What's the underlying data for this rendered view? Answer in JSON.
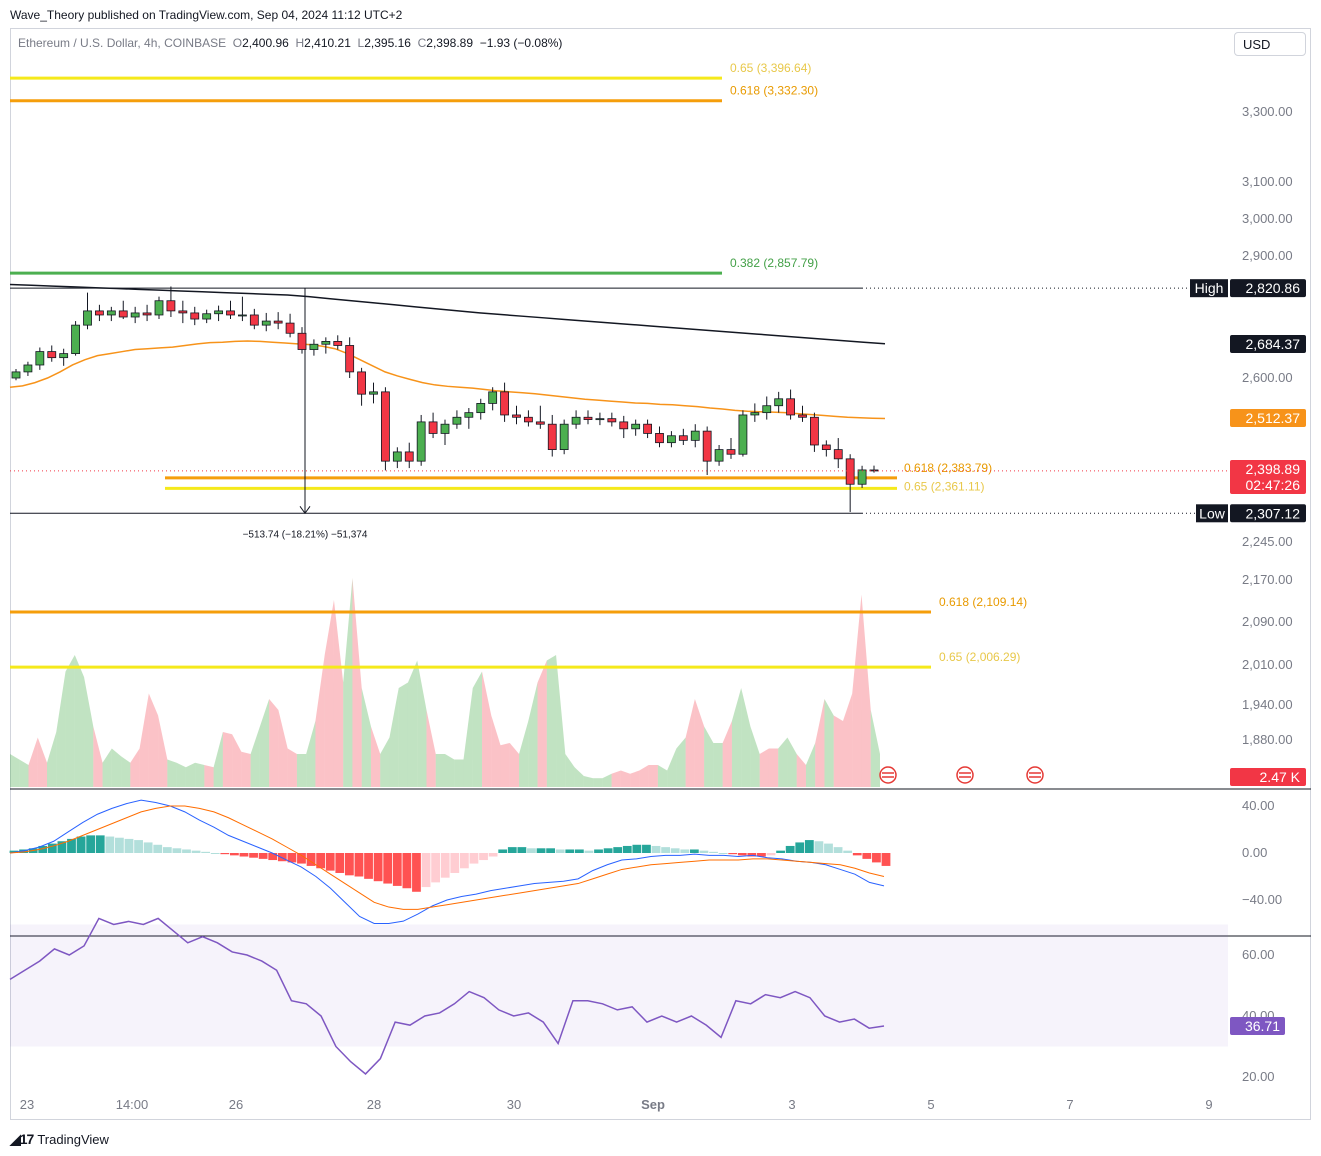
{
  "header": {
    "published": "Wave_Theory published on TradingView.com, Sep 04, 2024 11:12 UTC+2"
  },
  "legend": {
    "symbol": "Ethereum / U.S. Dollar, 4h, COINBASE",
    "o_label": "O",
    "o": "2,400.96",
    "h_label": "H",
    "h": "2,410.21",
    "l_label": "L",
    "l": "2,395.16",
    "c_label": "C",
    "c": "2,398.89",
    "change": "−1.93 (−0.08%)"
  },
  "currency": "USD",
  "brand": "TradingView",
  "colors": {
    "up": "#26a69a",
    "candle_up": "#4caf50",
    "down": "#f23645",
    "fib_0382": "#4caf50",
    "fib_0618": "#f59e0b",
    "fib_065": "#f5e91b",
    "ema_orange": "#f7931a",
    "sma_black": "#131722",
    "macd_line": "#2962ff",
    "signal_line": "#ff6d00",
    "rsi": "#7e57c2"
  },
  "chart_data": [
    {
      "type": "line",
      "panel": "price",
      "title": "Ethereum / U.S. Dollar, 4h, COINBASE",
      "x_tick_labels": [
        "23",
        "14:00",
        "26",
        "28",
        "30",
        "Sep",
        "3",
        "5",
        "7",
        "9"
      ],
      "y_tick_labels": [
        "3,300.00",
        "3,100.00",
        "3,000.00",
        "2,900.00",
        "2,600.00",
        "2,245.00",
        "2,170.00",
        "2,090.00",
        "2,010.00",
        "1,940.00",
        "1,880.00"
      ],
      "candles_ohlc": [
        [
          2600,
          2622,
          2595,
          2615
        ],
        [
          2615,
          2640,
          2605,
          2632
        ],
        [
          2632,
          2675,
          2620,
          2665
        ],
        [
          2665,
          2680,
          2640,
          2650
        ],
        [
          2650,
          2672,
          2630,
          2660
        ],
        [
          2660,
          2740,
          2655,
          2730
        ],
        [
          2730,
          2810,
          2720,
          2765
        ],
        [
          2765,
          2780,
          2740,
          2755
        ],
        [
          2755,
          2775,
          2740,
          2765
        ],
        [
          2765,
          2790,
          2745,
          2750
        ],
        [
          2750,
          2775,
          2735,
          2760
        ],
        [
          2760,
          2780,
          2740,
          2755
        ],
        [
          2755,
          2800,
          2745,
          2790
        ],
        [
          2790,
          2825,
          2750,
          2765
        ],
        [
          2765,
          2790,
          2735,
          2760
        ],
        [
          2760,
          2775,
          2730,
          2745
        ],
        [
          2745,
          2768,
          2735,
          2758
        ],
        [
          2758,
          2778,
          2740,
          2765
        ],
        [
          2765,
          2790,
          2745,
          2755
        ],
        [
          2755,
          2800,
          2740,
          2755
        ],
        [
          2755,
          2770,
          2720,
          2730
        ],
        [
          2730,
          2760,
          2715,
          2740
        ],
        [
          2740,
          2762,
          2720,
          2735
        ],
        [
          2735,
          2758,
          2700,
          2710
        ],
        [
          2710,
          2725,
          2660,
          2670
        ],
        [
          2670,
          2695,
          2655,
          2683
        ],
        [
          2683,
          2700,
          2660,
          2690
        ],
        [
          2690,
          2705,
          2670,
          2680
        ],
        [
          2680,
          2700,
          2600,
          2615
        ],
        [
          2615,
          2625,
          2540,
          2565
        ],
        [
          2565,
          2590,
          2545,
          2570
        ],
        [
          2570,
          2580,
          2400,
          2420
        ],
        [
          2420,
          2450,
          2405,
          2440
        ],
        [
          2440,
          2460,
          2405,
          2420
        ],
        [
          2420,
          2520,
          2410,
          2505
        ],
        [
          2505,
          2525,
          2470,
          2480
        ],
        [
          2480,
          2510,
          2455,
          2500
        ],
        [
          2500,
          2530,
          2490,
          2515
        ],
        [
          2515,
          2535,
          2490,
          2525
        ],
        [
          2525,
          2555,
          2510,
          2545
        ],
        [
          2545,
          2580,
          2530,
          2570
        ],
        [
          2570,
          2590,
          2505,
          2520
        ],
        [
          2520,
          2540,
          2500,
          2515
        ],
        [
          2515,
          2530,
          2495,
          2505
        ],
        [
          2505,
          2540,
          2490,
          2500
        ],
        [
          2500,
          2520,
          2430,
          2445
        ],
        [
          2445,
          2510,
          2435,
          2500
        ],
        [
          2500,
          2530,
          2490,
          2515
        ],
        [
          2515,
          2530,
          2500,
          2510
        ],
        [
          2510,
          2525,
          2498,
          2512
        ],
        [
          2512,
          2525,
          2495,
          2505
        ],
        [
          2505,
          2518,
          2470,
          2490
        ],
        [
          2490,
          2510,
          2475,
          2500
        ],
        [
          2500,
          2510,
          2470,
          2480
        ],
        [
          2480,
          2495,
          2450,
          2460
        ],
        [
          2460,
          2485,
          2450,
          2475
        ],
        [
          2475,
          2490,
          2455,
          2465
        ],
        [
          2465,
          2500,
          2450,
          2485
        ],
        [
          2485,
          2495,
          2390,
          2420
        ],
        [
          2420,
          2455,
          2410,
          2445
        ],
        [
          2445,
          2470,
          2425,
          2435
        ],
        [
          2435,
          2530,
          2430,
          2520
        ],
        [
          2520,
          2545,
          2505,
          2525
        ],
        [
          2525,
          2560,
          2510,
          2540
        ],
        [
          2540,
          2570,
          2525,
          2555
        ],
        [
          2555,
          2575,
          2510,
          2520
        ],
        [
          2520,
          2540,
          2505,
          2515
        ],
        [
          2515,
          2525,
          2440,
          2455
        ],
        [
          2455,
          2465,
          2430,
          2445
        ],
        [
          2445,
          2470,
          2405,
          2425
        ],
        [
          2425,
          2435,
          2310,
          2370
        ],
        [
          2370,
          2410,
          2362,
          2401
        ],
        [
          2400.96,
          2410.21,
          2395.16,
          2398.89
        ]
      ],
      "ema_50": [
        2580,
        2583,
        2590,
        2600,
        2615,
        2632,
        2645,
        2655,
        2660,
        2665,
        2670,
        2672,
        2674,
        2676,
        2680,
        2684,
        2687,
        2688,
        2690,
        2691,
        2690,
        2688,
        2686,
        2684,
        2682,
        2678,
        2672,
        2660,
        2645,
        2630,
        2615,
        2605,
        2597,
        2590,
        2585,
        2582,
        2580,
        2578,
        2575,
        2572,
        2570,
        2568,
        2566,
        2563,
        2560,
        2557,
        2554,
        2552,
        2550,
        2548,
        2546,
        2545,
        2543,
        2542,
        2540,
        2538,
        2535,
        2533,
        2530,
        2528,
        2527,
        2526,
        2525,
        2523,
        2521,
        2519,
        2517,
        2515,
        2514,
        2513,
        2512.37
      ],
      "sma_200": [
        2830,
        2828,
        2826,
        2824,
        2822,
        2820,
        2818,
        2816,
        2814,
        2812,
        2810,
        2808,
        2806,
        2804,
        2800,
        2795,
        2790,
        2785,
        2780,
        2775,
        2770,
        2765,
        2760,
        2756,
        2752,
        2748,
        2744,
        2740,
        2736,
        2732,
        2728,
        2724,
        2720,
        2716,
        2712,
        2708,
        2704,
        2700,
        2696,
        2692,
        2688,
        2684.37
      ],
      "fib_levels": [
        {
          "label": "0.65 (3,396.64)",
          "price": 3396.64
        },
        {
          "label": "0.618 (3,332.30)",
          "price": 3332.3
        },
        {
          "label": "0.382 (2,857.79)",
          "price": 2857.79
        },
        {
          "label": "0.618 (2,383.79)",
          "price": 2383.79
        },
        {
          "label": "0.65 (2,361.11)",
          "price": 2361.11
        },
        {
          "label": "0.618 (2,109.14)",
          "price": 2109.14
        },
        {
          "label": "0.65 (2,006.29)",
          "price": 2006.29
        }
      ],
      "high": {
        "label": "High",
        "price": "2,820.86",
        "value": 2820.86
      },
      "low": {
        "label": "Low",
        "price": "2,307.12",
        "value": 2307.12
      },
      "sma_price_label": "2,684.37",
      "ema_price_label": "2,512.37",
      "last_price_label": "2,398.89",
      "countdown": "02:47:26",
      "measure_label": "−513.74 (−18.21%) −51,374"
    },
    {
      "type": "area",
      "panel": "volume",
      "last_label": "2.47 K",
      "values": [
        0.3,
        0.25,
        0.2,
        0.45,
        0.22,
        0.5,
        1.05,
        1.2,
        1.0,
        0.55,
        0.22,
        0.35,
        0.28,
        0.22,
        0.35,
        0.85,
        0.65,
        0.25,
        0.22,
        0.18,
        0.22,
        0.2,
        0.18,
        0.5,
        0.48,
        0.32,
        0.3,
        0.55,
        0.8,
        0.7,
        0.35,
        0.3,
        0.3,
        0.6,
        1.2,
        1.7,
        0.95,
        1.9,
        0.9,
        0.55,
        0.3,
        0.45,
        0.9,
        0.95,
        1.15,
        0.7,
        0.3,
        0.3,
        0.25,
        0.25,
        0.9,
        1.05,
        0.65,
        0.38,
        0.4,
        0.3,
        0.6,
        0.95,
        1.15,
        1.2,
        0.3,
        0.18,
        0.1,
        0.08,
        0.08,
        0.12,
        0.15,
        0.12,
        0.15,
        0.2,
        0.2,
        0.15,
        0.35,
        0.45,
        0.8,
        0.55,
        0.4,
        0.4,
        0.6,
        0.9,
        0.55,
        0.3,
        0.35,
        0.35,
        0.45,
        0.3,
        0.2,
        0.4,
        0.8,
        0.65,
        0.6,
        0.85,
        1.75,
        0.7,
        0.3
      ],
      "up": [
        1,
        1,
        0,
        0,
        1,
        1,
        1,
        1,
        1,
        0,
        1,
        1,
        1,
        0,
        0,
        0,
        0,
        1,
        1,
        1,
        1,
        0,
        1,
        0,
        0,
        0,
        1,
        1,
        0,
        0,
        0,
        1,
        1,
        0,
        0,
        0,
        1,
        0,
        1,
        0,
        1,
        1,
        1,
        1,
        1,
        0,
        1,
        1,
        1,
        1,
        1,
        0,
        0,
        0,
        0,
        1,
        1,
        0,
        1,
        1,
        1,
        1,
        1,
        1,
        1,
        0,
        0,
        0,
        0,
        0,
        1,
        1,
        1,
        0,
        0,
        1,
        1,
        0,
        1,
        1,
        1,
        0,
        0,
        1,
        1,
        0,
        1,
        0,
        1,
        0,
        0,
        0,
        0,
        1,
        0
      ]
    },
    {
      "type": "bar",
      "panel": "macd",
      "y_tick_labels": [
        "40.00",
        "0.00",
        "−40.00"
      ],
      "histogram": [
        2,
        3,
        4,
        6,
        8,
        10,
        12,
        14,
        15,
        15,
        14,
        13,
        12,
        11,
        9,
        7,
        5,
        4,
        3,
        2,
        1,
        0,
        -1,
        -2,
        -3,
        -4,
        -5,
        -6,
        -7,
        -8,
        -9,
        -11,
        -13,
        -15,
        -17,
        -19,
        -20,
        -22,
        -24,
        -26,
        -28,
        -30,
        -33,
        -29,
        -25,
        -21,
        -17,
        -13,
        -9,
        -6,
        -3,
        3,
        5,
        5,
        4,
        4,
        4,
        3,
        3,
        3,
        2,
        3,
        4,
        5,
        6,
        7,
        7,
        6,
        5,
        4,
        3,
        3,
        2,
        1,
        0,
        -1,
        -2,
        -3,
        -3,
        -2,
        2,
        6,
        9,
        11,
        10,
        8,
        5,
        2,
        -2,
        -5,
        -8,
        -11
      ],
      "macd_line": [
        0,
        2,
        5,
        10,
        18,
        26,
        33,
        38,
        42,
        45,
        43,
        40,
        35,
        28,
        22,
        15,
        10,
        5,
        0,
        -6,
        -12,
        -20,
        -30,
        -42,
        -54,
        -60,
        -60,
        -58,
        -52,
        -45,
        -40,
        -37,
        -35,
        -32,
        -30,
        -28,
        -26,
        -25,
        -24,
        -22,
        -15,
        -10,
        -6,
        -5,
        -3,
        -2,
        -2,
        -1,
        -2,
        -2,
        -3,
        -2,
        -4,
        -5,
        -7,
        -8,
        -10,
        -14,
        -18,
        -25,
        -28
      ],
      "signal_line": [
        0,
        1,
        3,
        6,
        10,
        15,
        20,
        25,
        30,
        35,
        38,
        40,
        40,
        38,
        35,
        30,
        24,
        18,
        12,
        5,
        -2,
        -10,
        -18,
        -26,
        -34,
        -42,
        -46,
        -48,
        -48,
        -46,
        -44,
        -42,
        -40,
        -38,
        -36,
        -34,
        -32,
        -30,
        -28,
        -26,
        -22,
        -18,
        -14,
        -12,
        -10,
        -9,
        -8,
        -7,
        -6,
        -6,
        -6,
        -5,
        -5,
        -6,
        -7,
        -8,
        -9,
        -10,
        -13,
        -17,
        -20
      ]
    },
    {
      "type": "line",
      "panel": "rsi",
      "y_tick_labels": [
        "60.00",
        "40.00",
        "20.00"
      ],
      "last_label": "36.71",
      "values": [
        52,
        55,
        58,
        62,
        60,
        63,
        72,
        70,
        71,
        70,
        72,
        68,
        64,
        66,
        64,
        61,
        60,
        58,
        55,
        45,
        44,
        40,
        30,
        25,
        21,
        26,
        38,
        37,
        40,
        41,
        44,
        48,
        46,
        42,
        40,
        41,
        38,
        31,
        45,
        45,
        44,
        42,
        43,
        38,
        40,
        38,
        40,
        37,
        33,
        45,
        44,
        47,
        46,
        48,
        46,
        40,
        38,
        39,
        36,
        36.71
      ],
      "levels": [
        70,
        30
      ],
      "ylim": [
        15,
        72
      ]
    }
  ]
}
